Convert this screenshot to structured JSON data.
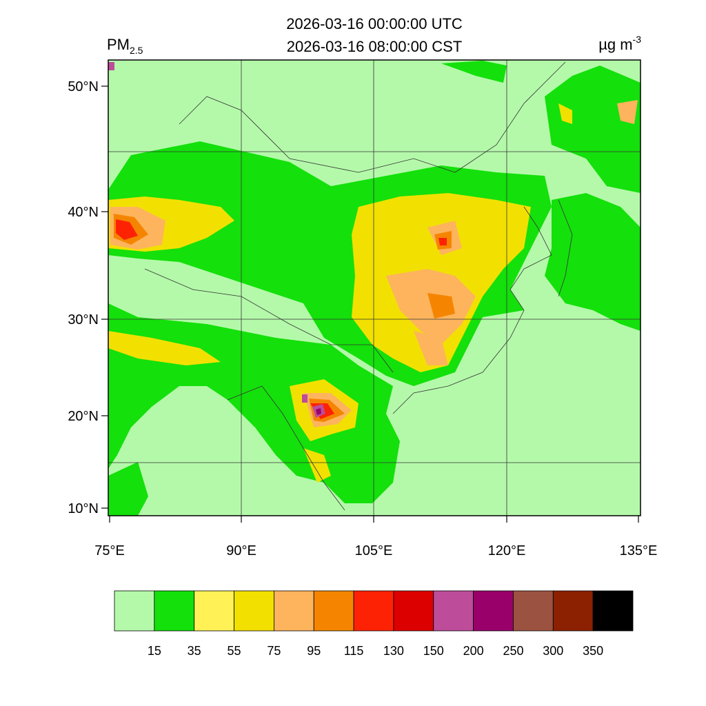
{
  "header": {
    "line1": "2026-03-16 00:00:00 UTC",
    "line2": "2026-03-16 08:00:00 CST",
    "variable": {
      "main": "PM",
      "sub": "2.5"
    },
    "units": {
      "main": "µg m",
      "sup": "-3"
    }
  },
  "map": {
    "lat_labels": [
      "50°N",
      "40°N",
      "30°N",
      "20°N",
      "10°N"
    ],
    "lon_labels": [
      "75°E",
      "90°E",
      "105°E",
      "120°E",
      "135°E"
    ]
  },
  "legend": {
    "colors": [
      "#b4f9aa",
      "#14e00b",
      "#fff156",
      "#f2e100",
      "#fdb45d",
      "#f58500",
      "#fe2205",
      "#dc0000",
      "#bd4c9b",
      "#9a006a",
      "#9c5240",
      "#8b2100",
      "#000000"
    ],
    "levels": [
      15,
      35,
      55,
      75,
      95,
      115,
      130,
      150,
      200,
      250,
      300,
      350
    ]
  }
}
